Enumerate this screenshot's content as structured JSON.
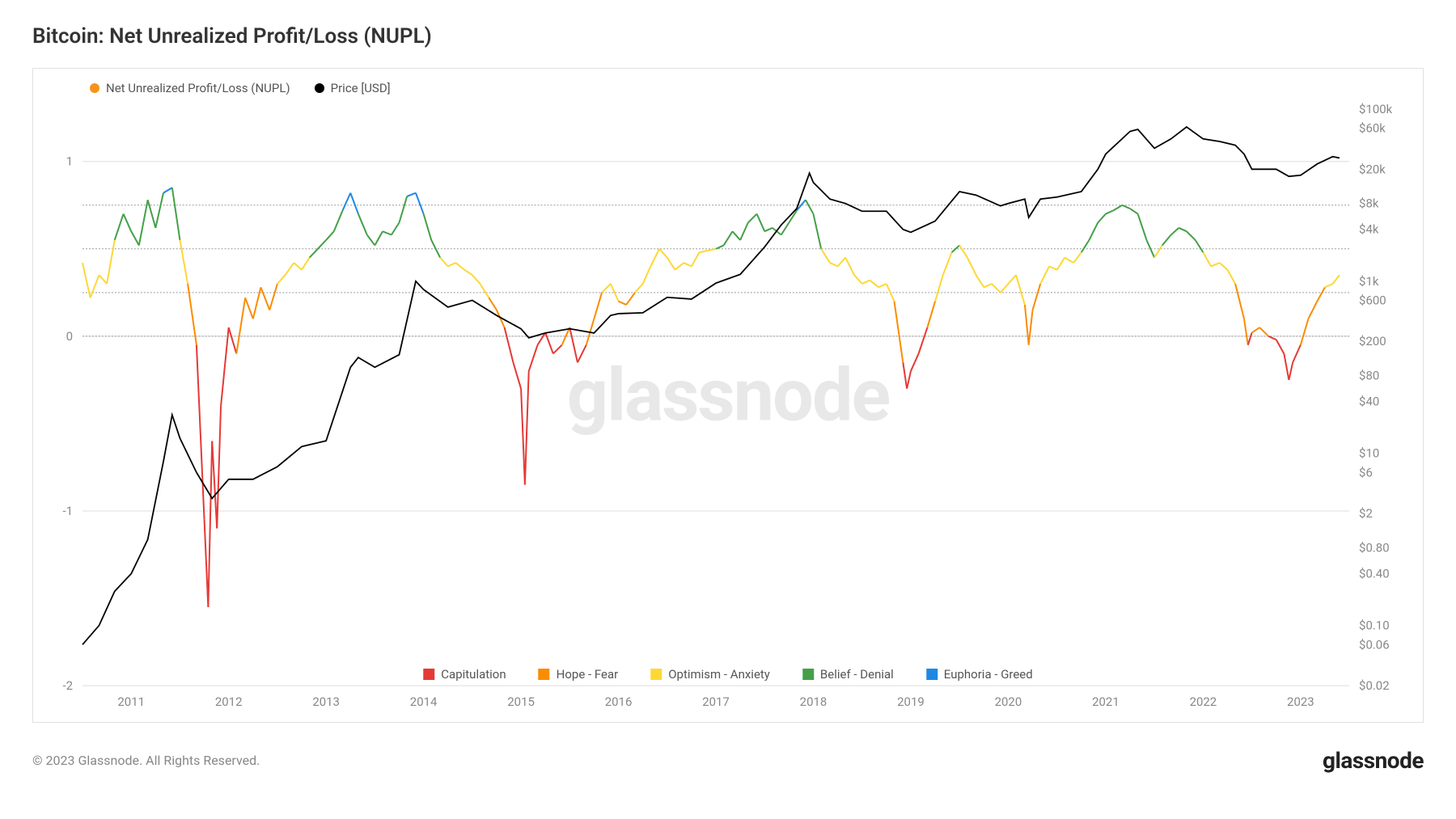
{
  "title": "Bitcoin: Net Unrealized Profit/Loss (NUPL)",
  "copyright": "© 2023 Glassnode. All Rights Reserved.",
  "brand": "glassnode",
  "watermark": "glassnode",
  "chart": {
    "type": "dual-axis-line",
    "background_color": "#ffffff",
    "border_color": "#e0e0e0",
    "grid_color": "#999999",
    "text_color": "#888888",
    "title_color": "#333333",
    "legend_top": [
      {
        "label": "Net Unrealized Profit/Loss (NUPL)",
        "color": "#f7931a",
        "shape": "dot"
      },
      {
        "label": "Price [USD]",
        "color": "#000000",
        "shape": "dot"
      }
    ],
    "legend_bottom": [
      {
        "label": "Capitulation",
        "color": "#e53935"
      },
      {
        "label": "Hope - Fear",
        "color": "#fb8c00"
      },
      {
        "label": "Optimism - Anxiety",
        "color": "#fdd835"
      },
      {
        "label": "Belief - Denial",
        "color": "#43a047"
      },
      {
        "label": "Euphoria - Greed",
        "color": "#1e88e5"
      }
    ],
    "x_axis": {
      "min": 2010.5,
      "max": 2023.5,
      "ticks": [
        2011,
        2012,
        2013,
        2014,
        2015,
        2016,
        2017,
        2018,
        2019,
        2020,
        2021,
        2022,
        2023
      ]
    },
    "y_left": {
      "label": "NUPL",
      "min": -2,
      "max": 1.3,
      "ticks": [
        -2,
        -1,
        0,
        1
      ],
      "ref_lines": [
        0,
        0.25,
        0.5,
        0.75
      ]
    },
    "y_right": {
      "label": "Price [USD]",
      "type": "log",
      "ticks": [
        0.02,
        0.06,
        0.1,
        0.4,
        0.8,
        2,
        6,
        10,
        40,
        80,
        200,
        600,
        1000,
        4000,
        8000,
        20000,
        60000,
        100000
      ],
      "tick_labels": [
        "$0.02",
        "$0.06",
        "$0.10",
        "$0.40",
        "$0.80",
        "$2",
        "$6",
        "$10",
        "$40",
        "$80",
        "$200",
        "$600",
        "$1k",
        "$4k",
        "$8k",
        "$20k",
        "$60k",
        "$100k"
      ]
    },
    "thresholds": {
      "capitulation_max": 0,
      "hope_max": 0.25,
      "optimism_max": 0.5,
      "belief_max": 0.75
    },
    "color_bands": {
      "capitulation": "#e53935",
      "hope": "#fb8c00",
      "optimism": "#fdd835",
      "belief": "#43a047",
      "euphoria": "#1e88e5"
    },
    "nupl_series": [
      [
        2010.5,
        0.42
      ],
      [
        2010.58,
        0.22
      ],
      [
        2010.67,
        0.35
      ],
      [
        2010.75,
        0.3
      ],
      [
        2010.83,
        0.55
      ],
      [
        2010.92,
        0.7
      ],
      [
        2011.0,
        0.6
      ],
      [
        2011.08,
        0.52
      ],
      [
        2011.17,
        0.78
      ],
      [
        2011.25,
        0.62
      ],
      [
        2011.33,
        0.82
      ],
      [
        2011.42,
        0.85
      ],
      [
        2011.5,
        0.55
      ],
      [
        2011.58,
        0.3
      ],
      [
        2011.67,
        -0.05
      ],
      [
        2011.75,
        -1.05
      ],
      [
        2011.79,
        -1.55
      ],
      [
        2011.83,
        -0.6
      ],
      [
        2011.88,
        -1.1
      ],
      [
        2011.92,
        -0.4
      ],
      [
        2012.0,
        0.05
      ],
      [
        2012.08,
        -0.1
      ],
      [
        2012.17,
        0.22
      ],
      [
        2012.25,
        0.1
      ],
      [
        2012.33,
        0.28
      ],
      [
        2012.42,
        0.15
      ],
      [
        2012.5,
        0.3
      ],
      [
        2012.58,
        0.35
      ],
      [
        2012.67,
        0.42
      ],
      [
        2012.75,
        0.38
      ],
      [
        2012.83,
        0.45
      ],
      [
        2013.0,
        0.55
      ],
      [
        2013.08,
        0.6
      ],
      [
        2013.17,
        0.72
      ],
      [
        2013.25,
        0.82
      ],
      [
        2013.33,
        0.7
      ],
      [
        2013.42,
        0.58
      ],
      [
        2013.5,
        0.52
      ],
      [
        2013.58,
        0.6
      ],
      [
        2013.67,
        0.58
      ],
      [
        2013.75,
        0.65
      ],
      [
        2013.83,
        0.8
      ],
      [
        2013.92,
        0.82
      ],
      [
        2014.0,
        0.7
      ],
      [
        2014.08,
        0.55
      ],
      [
        2014.17,
        0.45
      ],
      [
        2014.25,
        0.4
      ],
      [
        2014.33,
        0.42
      ],
      [
        2014.42,
        0.38
      ],
      [
        2014.5,
        0.35
      ],
      [
        2014.58,
        0.3
      ],
      [
        2014.67,
        0.22
      ],
      [
        2014.75,
        0.15
      ],
      [
        2014.83,
        0.05
      ],
      [
        2014.92,
        -0.15
      ],
      [
        2015.0,
        -0.3
      ],
      [
        2015.04,
        -0.85
      ],
      [
        2015.08,
        -0.2
      ],
      [
        2015.17,
        -0.05
      ],
      [
        2015.25,
        0.02
      ],
      [
        2015.33,
        -0.1
      ],
      [
        2015.42,
        -0.05
      ],
      [
        2015.5,
        0.05
      ],
      [
        2015.58,
        -0.15
      ],
      [
        2015.67,
        -0.05
      ],
      [
        2015.75,
        0.1
      ],
      [
        2015.83,
        0.25
      ],
      [
        2015.92,
        0.3
      ],
      [
        2016.0,
        0.2
      ],
      [
        2016.08,
        0.18
      ],
      [
        2016.17,
        0.25
      ],
      [
        2016.25,
        0.3
      ],
      [
        2016.33,
        0.4
      ],
      [
        2016.42,
        0.5
      ],
      [
        2016.5,
        0.45
      ],
      [
        2016.58,
        0.38
      ],
      [
        2016.67,
        0.42
      ],
      [
        2016.75,
        0.4
      ],
      [
        2016.83,
        0.48
      ],
      [
        2017.0,
        0.5
      ],
      [
        2017.08,
        0.52
      ],
      [
        2017.17,
        0.6
      ],
      [
        2017.25,
        0.55
      ],
      [
        2017.33,
        0.65
      ],
      [
        2017.42,
        0.7
      ],
      [
        2017.5,
        0.6
      ],
      [
        2017.58,
        0.62
      ],
      [
        2017.67,
        0.58
      ],
      [
        2017.75,
        0.65
      ],
      [
        2017.83,
        0.72
      ],
      [
        2017.92,
        0.78
      ],
      [
        2018.0,
        0.7
      ],
      [
        2018.08,
        0.5
      ],
      [
        2018.17,
        0.42
      ],
      [
        2018.25,
        0.4
      ],
      [
        2018.33,
        0.45
      ],
      [
        2018.42,
        0.35
      ],
      [
        2018.5,
        0.3
      ],
      [
        2018.58,
        0.32
      ],
      [
        2018.67,
        0.28
      ],
      [
        2018.75,
        0.3
      ],
      [
        2018.83,
        0.2
      ],
      [
        2018.92,
        -0.15
      ],
      [
        2018.96,
        -0.3
      ],
      [
        2019.0,
        -0.2
      ],
      [
        2019.08,
        -0.1
      ],
      [
        2019.17,
        0.05
      ],
      [
        2019.25,
        0.2
      ],
      [
        2019.33,
        0.35
      ],
      [
        2019.42,
        0.48
      ],
      [
        2019.5,
        0.52
      ],
      [
        2019.58,
        0.45
      ],
      [
        2019.67,
        0.35
      ],
      [
        2019.75,
        0.28
      ],
      [
        2019.83,
        0.3
      ],
      [
        2019.92,
        0.25
      ],
      [
        2020.0,
        0.3
      ],
      [
        2020.08,
        0.35
      ],
      [
        2020.17,
        0.18
      ],
      [
        2020.21,
        -0.05
      ],
      [
        2020.25,
        0.15
      ],
      [
        2020.33,
        0.3
      ],
      [
        2020.42,
        0.4
      ],
      [
        2020.5,
        0.38
      ],
      [
        2020.58,
        0.45
      ],
      [
        2020.67,
        0.42
      ],
      [
        2020.75,
        0.48
      ],
      [
        2020.83,
        0.55
      ],
      [
        2020.92,
        0.65
      ],
      [
        2021.0,
        0.7
      ],
      [
        2021.08,
        0.72
      ],
      [
        2021.17,
        0.75
      ],
      [
        2021.25,
        0.73
      ],
      [
        2021.33,
        0.7
      ],
      [
        2021.42,
        0.55
      ],
      [
        2021.5,
        0.45
      ],
      [
        2021.58,
        0.52
      ],
      [
        2021.67,
        0.58
      ],
      [
        2021.75,
        0.62
      ],
      [
        2021.83,
        0.6
      ],
      [
        2021.92,
        0.55
      ],
      [
        2022.0,
        0.48
      ],
      [
        2022.08,
        0.4
      ],
      [
        2022.17,
        0.42
      ],
      [
        2022.25,
        0.38
      ],
      [
        2022.33,
        0.3
      ],
      [
        2022.42,
        0.1
      ],
      [
        2022.46,
        -0.05
      ],
      [
        2022.5,
        0.02
      ],
      [
        2022.58,
        0.05
      ],
      [
        2022.67,
        0.0
      ],
      [
        2022.75,
        -0.02
      ],
      [
        2022.83,
        -0.1
      ],
      [
        2022.88,
        -0.25
      ],
      [
        2022.92,
        -0.15
      ],
      [
        2023.0,
        -0.05
      ],
      [
        2023.08,
        0.1
      ],
      [
        2023.17,
        0.2
      ],
      [
        2023.25,
        0.28
      ],
      [
        2023.33,
        0.3
      ],
      [
        2023.4,
        0.35
      ]
    ],
    "price_series": [
      [
        2010.5,
        0.06
      ],
      [
        2010.67,
        0.1
      ],
      [
        2010.83,
        0.25
      ],
      [
        2011.0,
        0.4
      ],
      [
        2011.17,
        1
      ],
      [
        2011.33,
        8
      ],
      [
        2011.42,
        28
      ],
      [
        2011.5,
        15
      ],
      [
        2011.67,
        6
      ],
      [
        2011.83,
        3
      ],
      [
        2012.0,
        5
      ],
      [
        2012.25,
        5
      ],
      [
        2012.5,
        7
      ],
      [
        2012.75,
        12
      ],
      [
        2013.0,
        14
      ],
      [
        2013.25,
        100
      ],
      [
        2013.33,
        130
      ],
      [
        2013.5,
        100
      ],
      [
        2013.75,
        140
      ],
      [
        2013.92,
        1000
      ],
      [
        2014.0,
        800
      ],
      [
        2014.25,
        500
      ],
      [
        2014.5,
        600
      ],
      [
        2014.75,
        400
      ],
      [
        2015.0,
        280
      ],
      [
        2015.08,
        220
      ],
      [
        2015.25,
        250
      ],
      [
        2015.5,
        280
      ],
      [
        2015.75,
        250
      ],
      [
        2015.92,
        400
      ],
      [
        2016.0,
        420
      ],
      [
        2016.25,
        430
      ],
      [
        2016.5,
        650
      ],
      [
        2016.75,
        620
      ],
      [
        2017.0,
        950
      ],
      [
        2017.25,
        1200
      ],
      [
        2017.5,
        2500
      ],
      [
        2017.67,
        4500
      ],
      [
        2017.83,
        7000
      ],
      [
        2017.96,
        18000
      ],
      [
        2018.0,
        14000
      ],
      [
        2018.17,
        9000
      ],
      [
        2018.33,
        8000
      ],
      [
        2018.5,
        6500
      ],
      [
        2018.75,
        6500
      ],
      [
        2018.92,
        4000
      ],
      [
        2019.0,
        3700
      ],
      [
        2019.25,
        5000
      ],
      [
        2019.5,
        11000
      ],
      [
        2019.67,
        10000
      ],
      [
        2019.92,
        7500
      ],
      [
        2020.0,
        8000
      ],
      [
        2020.17,
        9000
      ],
      [
        2020.21,
        5500
      ],
      [
        2020.33,
        9000
      ],
      [
        2020.5,
        9500
      ],
      [
        2020.75,
        11000
      ],
      [
        2020.92,
        20000
      ],
      [
        2021.0,
        30000
      ],
      [
        2021.25,
        55000
      ],
      [
        2021.33,
        58000
      ],
      [
        2021.5,
        35000
      ],
      [
        2021.67,
        45000
      ],
      [
        2021.83,
        62000
      ],
      [
        2022.0,
        45000
      ],
      [
        2022.17,
        42000
      ],
      [
        2022.33,
        38000
      ],
      [
        2022.42,
        30000
      ],
      [
        2022.5,
        20000
      ],
      [
        2022.75,
        20000
      ],
      [
        2022.88,
        16500
      ],
      [
        2023.0,
        17000
      ],
      [
        2023.17,
        23000
      ],
      [
        2023.33,
        28000
      ],
      [
        2023.4,
        27000
      ]
    ]
  }
}
